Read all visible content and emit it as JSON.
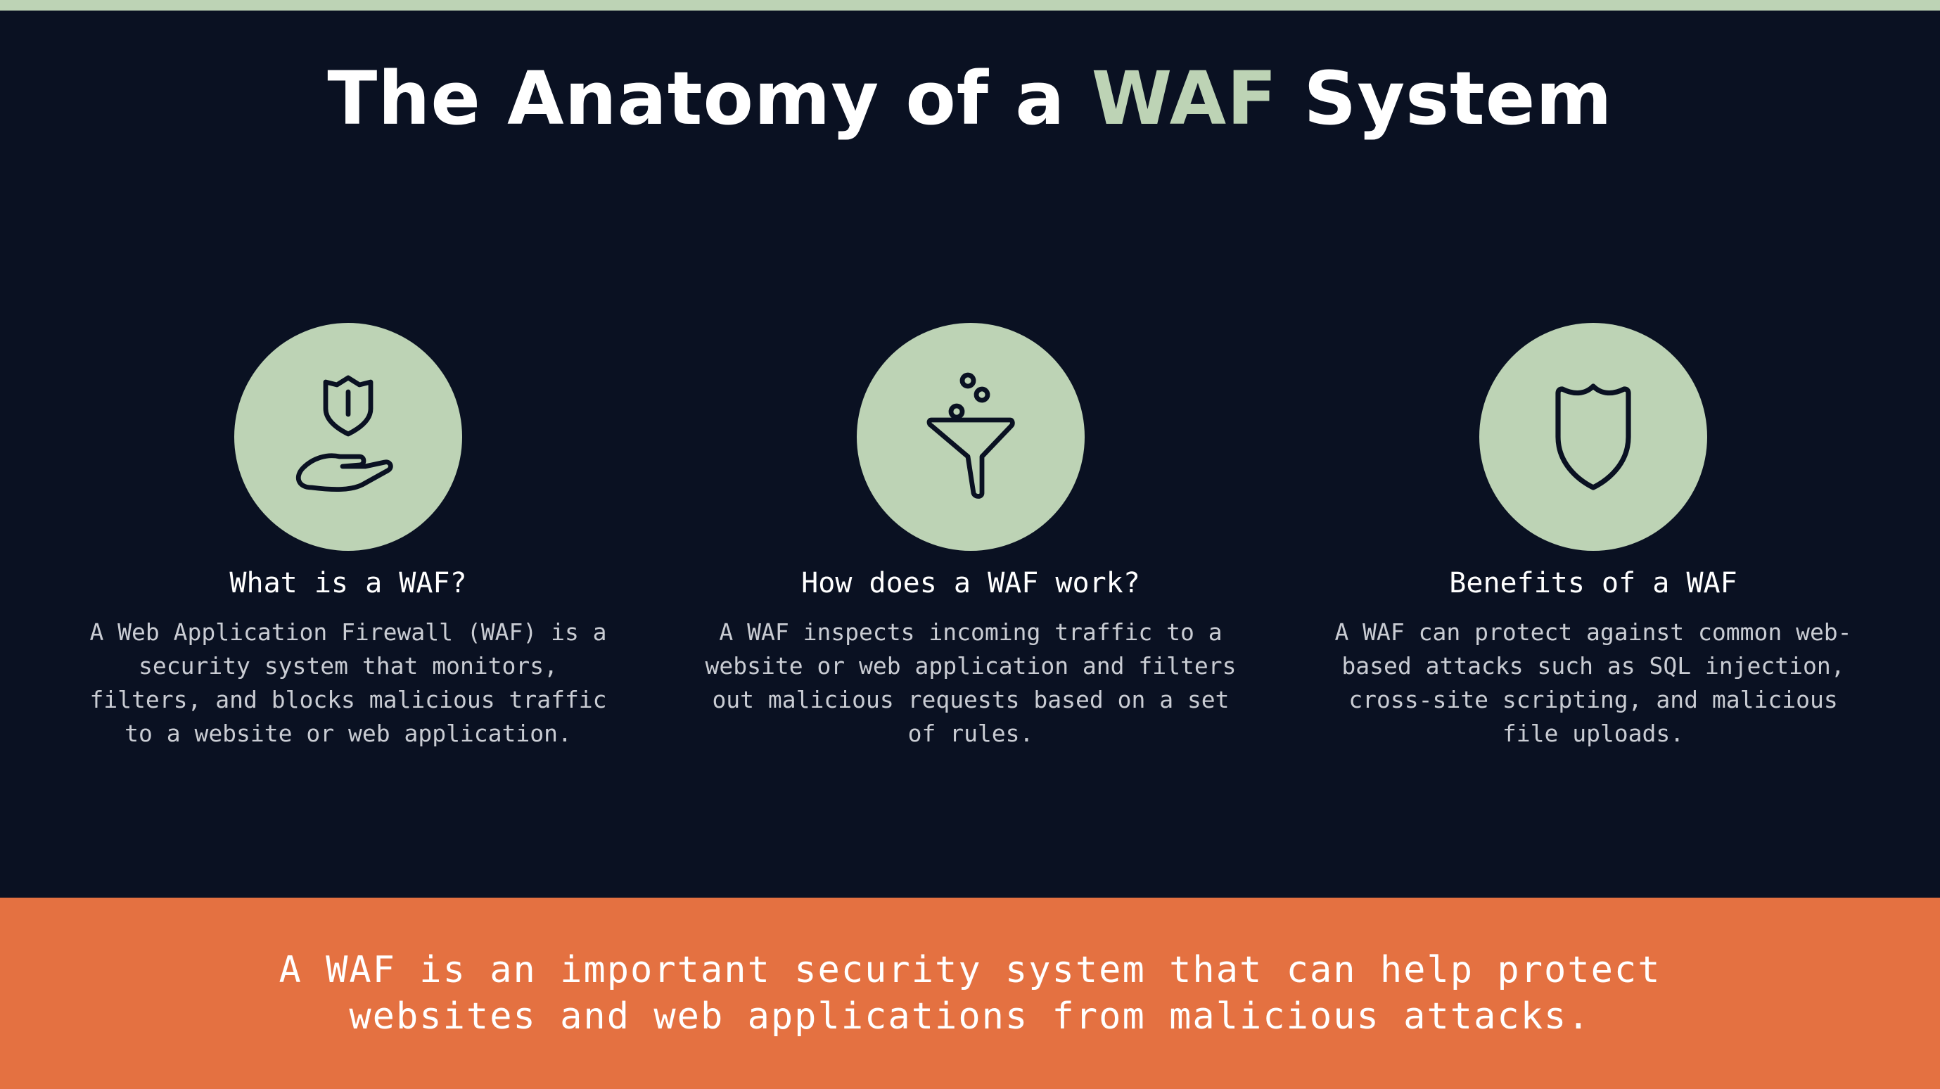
{
  "title": {
    "before": "The Anatomy of a ",
    "accent": "WAF",
    "after": " System"
  },
  "cards": [
    {
      "icon": "shield-hand-icon",
      "heading": "What is a WAF?",
      "body": "A Web Application Firewall (WAF) is a security system that monitors, filters, and blocks malicious traffic to a website or web application."
    },
    {
      "icon": "funnel-icon",
      "heading": "How does a WAF work?",
      "body": "A WAF inspects incoming traffic to a website or web application and filters out malicious requests based on a set of rules."
    },
    {
      "icon": "shield-icon",
      "heading": "Benefits of a WAF",
      "body": "A WAF can protect against common web-based attacks such as SQL injection, cross-site scripting, and malicious file uploads."
    }
  ],
  "footer": {
    "text": "A WAF is an important security system that can help protect websites and web applications from malicious attacks."
  },
  "colors": {
    "background": "#0a1122",
    "accent": "#bdd3b5",
    "footer": "#e47141"
  }
}
